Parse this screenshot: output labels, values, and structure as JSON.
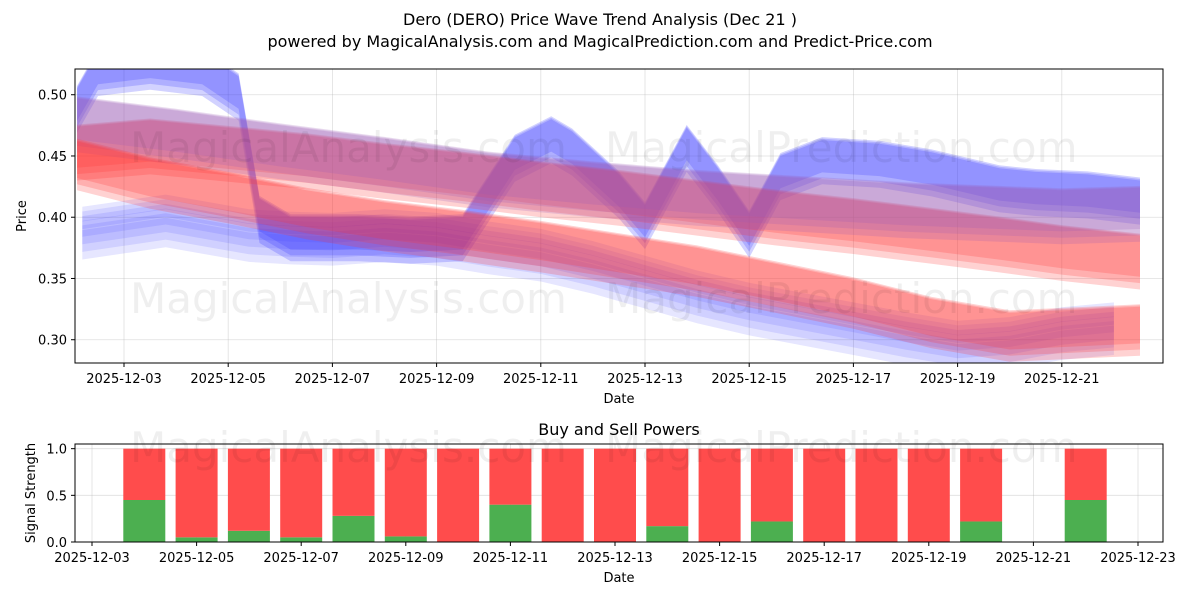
{
  "title_line1": "Dero (DERO) Price Wave Trend Analysis (Dec 21 )",
  "title_line2": "powered by MagicalAnalysis.com and MagicalPrediction.com and Predict-Price.com",
  "watermarks": [
    "MagicalAnalysis.com",
    "MagicalPrediction.com"
  ],
  "colors": {
    "buy": "#4caf50",
    "sell": "#ff4c4c",
    "blue": "#3333ff",
    "red": "#ff3333",
    "purple": "#9b59b6"
  },
  "chart_data": [
    {
      "type": "area",
      "title": "",
      "xlabel": "Date",
      "ylabel": "Price",
      "x_ticks": [
        "2025-12-03",
        "2025-12-05",
        "2025-12-07",
        "2025-12-09",
        "2025-12-11",
        "2025-12-13",
        "2025-12-15",
        "2025-12-17",
        "2025-12-19",
        "2025-12-21"
      ],
      "y_ticks": [
        "0.30",
        "0.35",
        "0.40",
        "0.45",
        "0.50"
      ],
      "ylim": [
        0.281,
        0.521
      ],
      "series": [
        {
          "name": "blue wave",
          "color": "blue",
          "x": [
            2.1,
            2.5,
            3.5,
            4.5,
            5.2,
            5.6,
            6.2,
            7.5,
            8.5,
            9.5,
            10.5,
            11.2,
            11.6,
            12.5,
            13.0,
            13.8,
            14.4,
            15.0,
            15.6,
            16.4,
            17.5,
            18.5,
            19.8,
            20.5,
            21.5,
            22.5
          ],
          "center": [
            0.49,
            0.52,
            0.525,
            0.52,
            0.5,
            0.4,
            0.385,
            0.385,
            0.383,
            0.385,
            0.45,
            0.465,
            0.455,
            0.42,
            0.395,
            0.458,
            0.425,
            0.388,
            0.435,
            0.448,
            0.445,
            0.438,
            0.425,
            0.422,
            0.42,
            0.415
          ],
          "half_width": 0.018
        },
        {
          "name": "red band",
          "color": "red",
          "x": [
            2.1,
            3.5,
            4.5,
            5.5,
            6.5,
            8,
            9.5,
            11,
            12.5,
            14,
            15.5,
            17,
            18.5,
            19.8,
            21,
            22.5
          ],
          "center": [
            0.455,
            0.46,
            0.456,
            0.452,
            0.448,
            0.44,
            0.433,
            0.425,
            0.418,
            0.41,
            0.402,
            0.395,
            0.387,
            0.38,
            0.373,
            0.366
          ],
          "half_width": 0.022
        },
        {
          "name": "purple band",
          "color": "purple",
          "x": [
            2.1,
            4,
            6,
            8,
            10,
            12,
            14,
            16,
            18,
            19.8,
            21,
            22.5
          ],
          "center": [
            0.478,
            0.468,
            0.456,
            0.445,
            0.433,
            0.425,
            0.418,
            0.413,
            0.408,
            0.405,
            0.403,
            0.405
          ],
          "half_width": 0.022
        },
        {
          "name": "lower ensemble",
          "color": "blue",
          "x": [
            2.2,
            3,
            3.8,
            4.6,
            5.4,
            6.2,
            7,
            8,
            9,
            10,
            11,
            12,
            13,
            14,
            15,
            16,
            17,
            18,
            19,
            20,
            21,
            22
          ],
          "center": [
            0.39,
            0.395,
            0.4,
            0.394,
            0.388,
            0.386,
            0.385,
            0.388,
            0.385,
            0.378,
            0.372,
            0.362,
            0.35,
            0.338,
            0.328,
            0.32,
            0.312,
            0.304,
            0.297,
            0.3,
            0.308,
            0.312
          ],
          "half_width": 0.012
        },
        {
          "name": "descending red",
          "color": "red",
          "x": [
            2.1,
            3.5,
            5,
            6.5,
            8,
            9.5,
            11,
            12.5,
            14,
            15.5,
            17,
            18.5,
            20,
            21.5,
            22.5
          ],
          "center": [
            0.445,
            0.43,
            0.418,
            0.405,
            0.395,
            0.387,
            0.378,
            0.368,
            0.358,
            0.345,
            0.332,
            0.316,
            0.305,
            0.308,
            0.31
          ],
          "half_width": 0.02
        }
      ]
    },
    {
      "type": "bar",
      "title": "Buy and Sell Powers",
      "xlabel": "Date",
      "ylabel": "Signal Strength",
      "x_ticks": [
        "2025-12-03",
        "2025-12-05",
        "2025-12-07",
        "2025-12-09",
        "2025-12-11",
        "2025-12-13",
        "2025-12-15",
        "2025-12-17",
        "2025-12-19",
        "2025-12-21",
        "2025-12-23"
      ],
      "y_ticks": [
        "0.0",
        "0.5",
        "1.0"
      ],
      "ylim": [
        0,
        1.05
      ],
      "categories": [
        "2025-12-04",
        "2025-12-05",
        "2025-12-06",
        "2025-12-07",
        "2025-12-08",
        "2025-12-09",
        "2025-12-10",
        "2025-12-11",
        "2025-12-12",
        "2025-12-13",
        "2025-12-14",
        "2025-12-15",
        "2025-12-16",
        "2025-12-17",
        "2025-12-18",
        "2025-12-19",
        "2025-12-20",
        "2025-12-22"
      ],
      "series": [
        {
          "name": "Buy",
          "values": [
            0.45,
            0.05,
            0.12,
            0.05,
            0.28,
            0.06,
            0.0,
            0.4,
            0.0,
            0.0,
            0.17,
            0.0,
            0.22,
            0.0,
            0.0,
            0.0,
            0.22,
            0.45
          ]
        },
        {
          "name": "Sell",
          "values": [
            0.55,
            0.95,
            0.88,
            0.95,
            0.72,
            0.94,
            1.0,
            0.6,
            1.0,
            1.0,
            0.83,
            1.0,
            0.78,
            1.0,
            1.0,
            1.0,
            0.78,
            0.55
          ]
        }
      ]
    }
  ]
}
